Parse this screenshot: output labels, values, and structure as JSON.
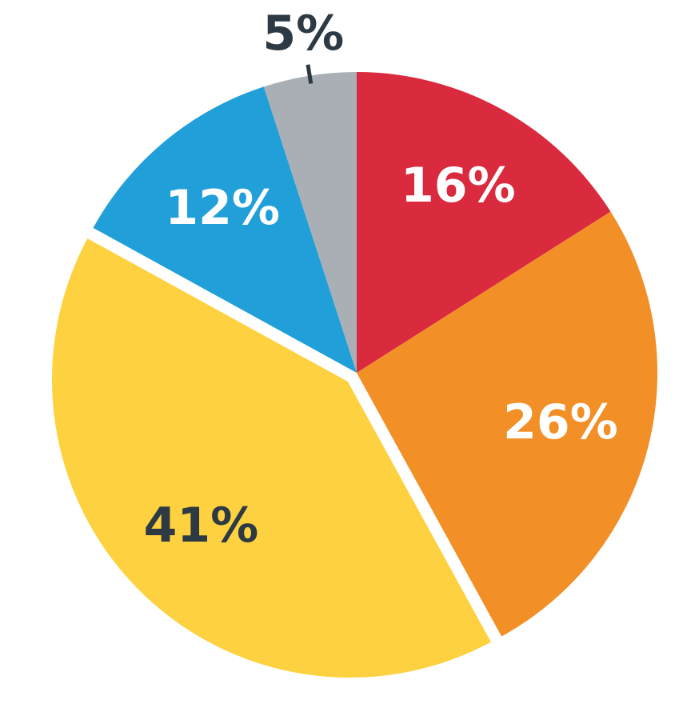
{
  "chart_data": {
    "type": "pie",
    "values": [
      16,
      26,
      41,
      12,
      5
    ],
    "value_labels": [
      "16%",
      "26%",
      "41%",
      "12%",
      "5%"
    ],
    "colors": [
      "#d92a3e",
      "#f28f26",
      "#fdd13f",
      "#219fd9",
      "#a9afb5"
    ],
    "label_colors": [
      "#ffffff",
      "#ffffff",
      "#2d3a44",
      "#ffffff",
      "#2d3a44"
    ],
    "explode": [
      false,
      false,
      true,
      false,
      false
    ],
    "start_angle": "top",
    "direction": "clockwise"
  }
}
